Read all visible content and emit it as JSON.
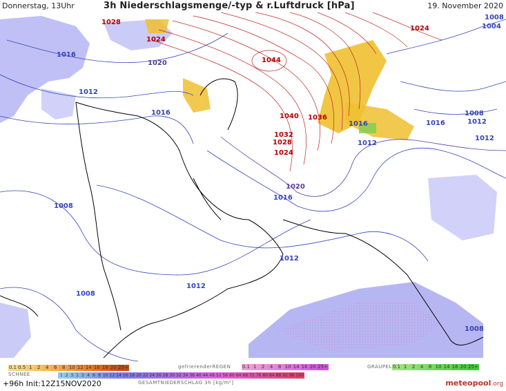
{
  "header": {
    "left": "Donnerstag, 13Uhr",
    "center": "3h Niederschlagsmenge/-typ & r.Luftdruck [hPa]",
    "right": "19. November 2020"
  },
  "isobar_labels": [
    {
      "text": "1028",
      "color": "#b00000"
    },
    {
      "text": "1024",
      "color": "#b00000"
    },
    {
      "text": "1020",
      "color": "#5a3a9a"
    },
    {
      "text": "1016",
      "color": "#3344bb"
    },
    {
      "text": "1012",
      "color": "#3344bb"
    },
    {
      "text": "1016",
      "color": "#3344bb"
    },
    {
      "text": "1044",
      "color": "#b00000"
    },
    {
      "text": "1040",
      "color": "#b00000"
    },
    {
      "text": "1036",
      "color": "#b00000"
    },
    {
      "text": "1032",
      "color": "#b00000"
    },
    {
      "text": "1028",
      "color": "#b00000"
    },
    {
      "text": "1024",
      "color": "#b00000"
    },
    {
      "text": "1020",
      "color": "#5a3a9a"
    },
    {
      "text": "1016",
      "color": "#3344bb"
    },
    {
      "text": "1016",
      "color": "#3344bb"
    },
    {
      "text": "1012",
      "color": "#3344bb"
    },
    {
      "text": "1024",
      "color": "#b00000"
    },
    {
      "text": "1008",
      "color": "#3344bb"
    },
    {
      "text": "1004",
      "color": "#3344bb"
    },
    {
      "text": "1008",
      "color": "#3344bb"
    },
    {
      "text": "1012",
      "color": "#3344bb"
    },
    {
      "text": "1016",
      "color": "#3344bb"
    },
    {
      "text": "1012",
      "color": "#3344bb"
    },
    {
      "text": "1008",
      "color": "#3344bb"
    },
    {
      "text": "1012",
      "color": "#3344bb"
    },
    {
      "text": "1012",
      "color": "#3344bb"
    },
    {
      "text": "1008",
      "color": "#3344bb"
    },
    {
      "text": "1008",
      "color": "#3344bb"
    }
  ],
  "legend": {
    "snow_label": "SCHNEE",
    "snow_steps": [
      "0.1",
      "0.5",
      "1",
      "2",
      "4",
      "6",
      "8",
      "10",
      "12",
      "14",
      "16",
      "18",
      "20",
      "25+"
    ],
    "freezing_rain_label": "gefrierenderREGEN",
    "freezing_rain_steps": [
      "0.1",
      "1",
      "2",
      "4",
      "8",
      "10",
      "14",
      "16",
      "20",
      "25+"
    ],
    "graupel_label": "GRAUPEL",
    "graupel_steps": [
      "0.1",
      "1",
      "2",
      "4",
      "8",
      "10",
      "14",
      "16",
      "20",
      "25+"
    ],
    "rain_steps": [
      ".1",
      ".2",
      ".5",
      "1",
      "2",
      "4",
      "6",
      "8",
      "10",
      "12",
      "14",
      "16",
      "18",
      "20",
      "22",
      "24",
      "26",
      "28",
      "30",
      "32",
      "34",
      "36",
      "40",
      "44",
      "48",
      "52",
      "56",
      "60",
      "64",
      "68",
      "72",
      "76",
      "80",
      "84",
      "88",
      "92",
      "96",
      "100"
    ],
    "total_label": "GESAMTNIEDERSCHLAG 3h [kg/m²]"
  },
  "run_info": "+96h  Init:12Z15NOV2020",
  "brand": {
    "name": "meteopool",
    "suffix": ".org"
  },
  "colors": {
    "snow": "#e8b820",
    "rain": "#6b6be0",
    "freezing": "#e080d0",
    "graupel": "#7cd050",
    "isobar_high": "#b00000",
    "isobar_low": "#3344bb"
  }
}
